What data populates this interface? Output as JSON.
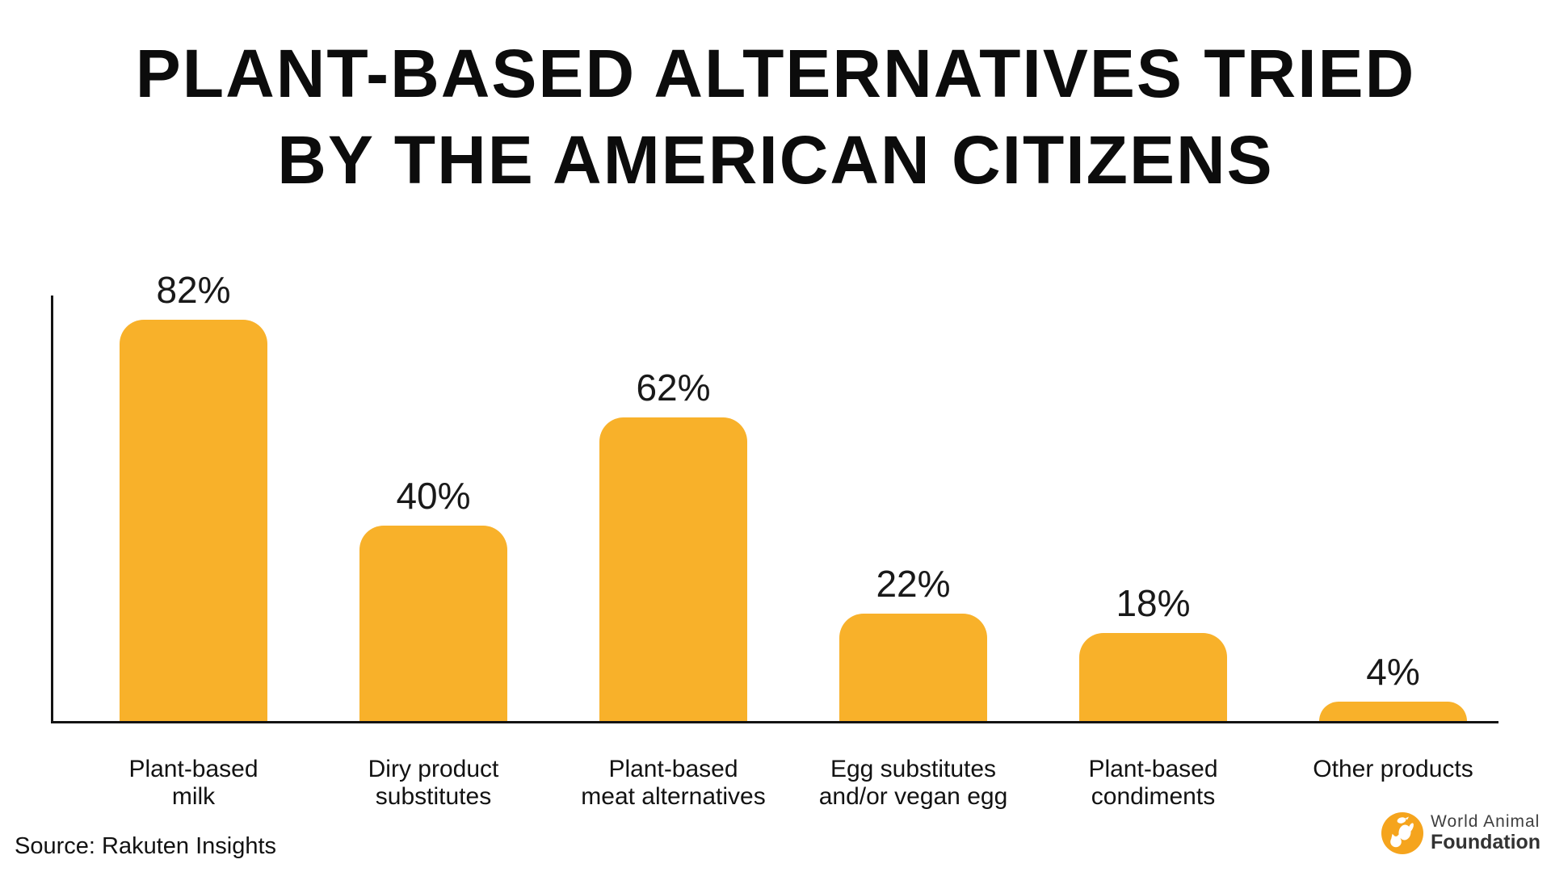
{
  "title": {
    "line1": "PLANT-BASED ALTERNATIVES TRIED",
    "line2": "BY THE AMERICAN CITIZENS"
  },
  "chart_data": {
    "type": "bar",
    "title": "PLANT-BASED ALTERNATIVES TRIED BY THE AMERICAN CITIZENS",
    "categories": [
      "Plant-based\nmilk",
      "Diry product\nsubstitutes",
      "Plant-based\nmeat alternatives",
      "Egg substitutes\nand/or vegan egg",
      "Plant-based\ncondiments",
      "Other products"
    ],
    "values": [
      82,
      40,
      62,
      22,
      18,
      4
    ],
    "value_labels": [
      "82%",
      "40%",
      "62%",
      "22%",
      "18%",
      "4%"
    ],
    "unit": "%",
    "ylim": [
      0,
      100
    ],
    "grid": false,
    "legend": false,
    "bar_color": "#F8B12A",
    "axis_color": "#141414",
    "label_color": "#191919"
  },
  "source": {
    "label": "Source: Rakuten Insights"
  },
  "logo": {
    "name": "World Animal Foundation",
    "line1": "World Animal",
    "line2": "Foundation",
    "icon_color": "#F5A41D",
    "text_color": "#3A3A3A"
  }
}
